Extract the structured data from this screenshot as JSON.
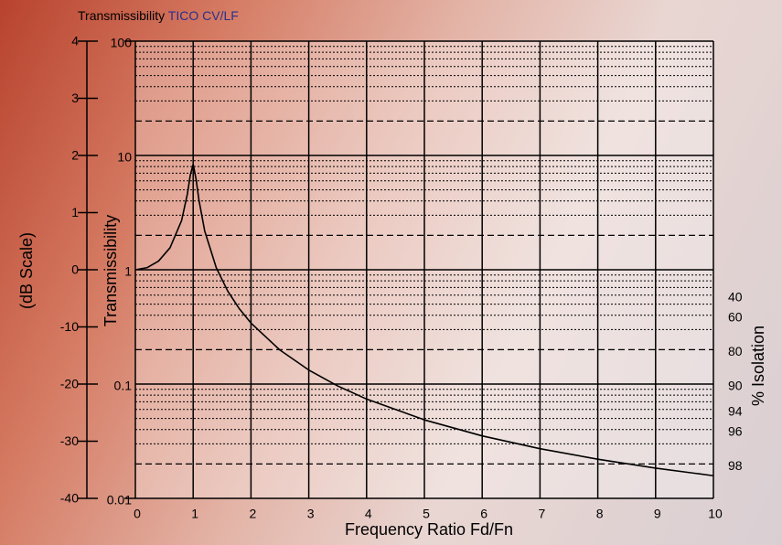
{
  "chart_data": {
    "type": "line",
    "title": "Transmissibility",
    "subtitle": "TICO CV/LF",
    "xlabel": "Frequency Ratio Fd/Fn",
    "ylabel": "Transmissibility",
    "log_y": true,
    "xlim": [
      0,
      10
    ],
    "xticks": [
      0,
      1,
      2,
      3,
      4,
      5,
      6,
      7,
      8,
      9,
      10
    ],
    "ylim": [
      0.01,
      100
    ],
    "yticks": [
      0.01,
      0.1,
      1,
      10,
      100
    ],
    "y_dashed_grid": [
      0.02,
      0.2,
      2,
      20
    ],
    "y_dotted_grid": [
      0.03,
      0.04,
      0.05,
      0.06,
      0.07,
      0.08,
      0.09,
      0.3,
      0.4,
      0.5,
      0.6,
      0.7,
      0.8,
      0.9,
      3,
      4,
      5,
      6,
      7,
      8,
      9,
      30,
      40,
      50,
      60,
      70,
      80,
      90
    ],
    "grid": true,
    "series": [
      {
        "color": "#000000",
        "x": [
          0,
          0.2,
          0.4,
          0.6,
          0.8,
          0.9,
          0.95,
          1,
          1.05,
          1.1,
          1.2,
          1.4,
          1.6,
          1.8,
          2,
          2.5,
          3,
          3.5,
          4,
          5,
          6,
          7,
          8,
          9,
          10
        ],
        "values": [
          1,
          1.042,
          1.19,
          1.557,
          2.697,
          4.6,
          6.71,
          8.39,
          6.2,
          4.07,
          2.18,
          1.04,
          0.648,
          0.4546,
          0.3417,
          0.1986,
          0.1327,
          0.0963,
          0.0739,
          0.0486,
          0.0352,
          0.0272,
          0.022,
          0.0184,
          0.01578
        ]
      }
    ],
    "db_axis": {
      "label": "(dB Scale)",
      "ticks": [
        4,
        3,
        2,
        1,
        0,
        -10,
        -20,
        -30,
        -40
      ]
    },
    "isolation_axis": {
      "label": "% Isolation",
      "ticks": [
        40,
        60,
        80,
        90,
        94,
        96,
        98
      ]
    }
  }
}
